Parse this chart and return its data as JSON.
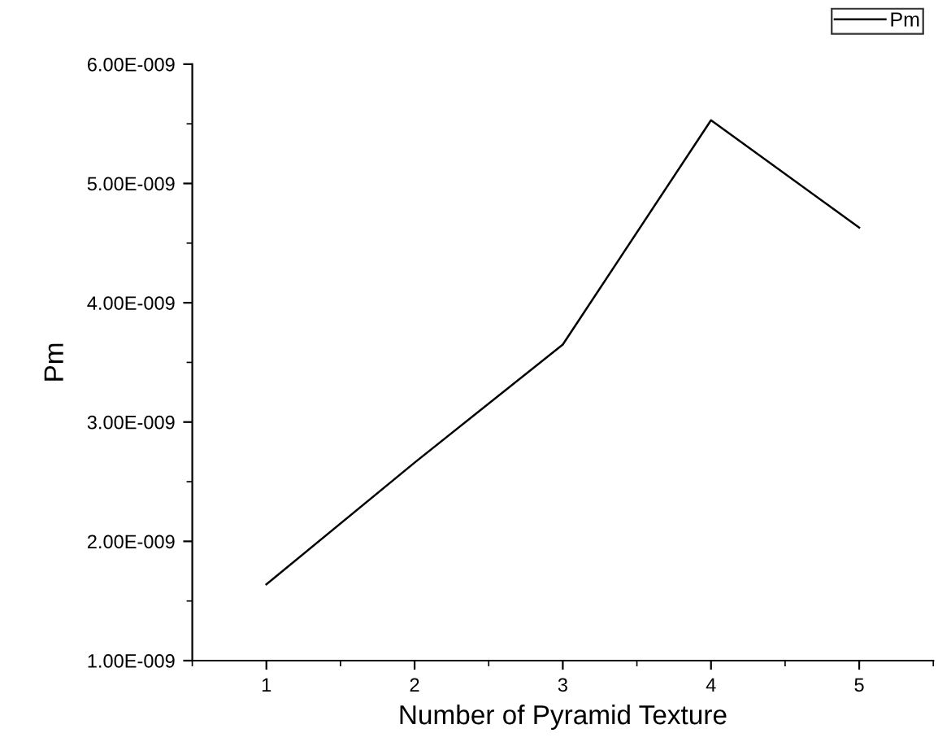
{
  "chart_data": {
    "type": "line",
    "xlabel": "Number of Pyramid Texture",
    "ylabel": "Pm",
    "x": [
      1,
      2,
      3,
      4,
      5
    ],
    "series": [
      {
        "name": "Pm",
        "color": "#000000",
        "values": [
          1.64e-09,
          2.66e-09,
          3.65e-09,
          5.53e-09,
          4.63e-09
        ]
      }
    ],
    "xlim": [
      0.5,
      5.5
    ],
    "xticks": [
      1,
      2,
      3,
      4,
      5
    ],
    "ylim": [
      1e-09,
      6e-09
    ],
    "yticks": [
      {
        "value": 1e-09,
        "label": "1.00E-009"
      },
      {
        "value": 2e-09,
        "label": "2.00E-009"
      },
      {
        "value": 3e-09,
        "label": "3.00E-009"
      },
      {
        "value": 4e-09,
        "label": "4.00E-009"
      },
      {
        "value": 5e-09,
        "label": "5.00E-009"
      },
      {
        "value": 6e-09,
        "label": "6.00E-009"
      }
    ],
    "grid": false,
    "legend": "top right",
    "marker": "none",
    "line_style": "solid"
  }
}
